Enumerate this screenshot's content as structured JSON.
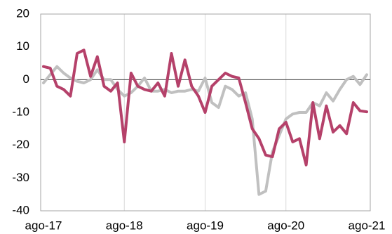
{
  "chart_data": {
    "type": "line",
    "categories": [
      "ago-17",
      null,
      null,
      null,
      null,
      null,
      null,
      null,
      null,
      null,
      null,
      null,
      "ago-18",
      null,
      null,
      null,
      null,
      null,
      null,
      null,
      null,
      null,
      null,
      null,
      "ago-19",
      null,
      null,
      null,
      null,
      null,
      null,
      null,
      null,
      null,
      null,
      null,
      "ago-20",
      null,
      null,
      null,
      null,
      null,
      null,
      null,
      null,
      null,
      null,
      null,
      "ago-21"
    ],
    "series": [
      {
        "color": "#b5416a",
        "values": [
          4,
          3.5,
          -2,
          -3,
          -5,
          8,
          9,
          1,
          7,
          -2,
          -3.5,
          -1,
          -19,
          2,
          -2,
          -3,
          -3.5,
          -1,
          -5,
          8,
          -2,
          6,
          -2,
          -5,
          -10,
          -2,
          0,
          2,
          1,
          0.5,
          -7,
          -15,
          -18,
          -23,
          -23.5,
          -15,
          -13,
          -19,
          -18,
          -26,
          -7,
          -18,
          -8,
          -16,
          -14,
          -16.5,
          -7,
          -9.5,
          -9.8
        ]
      },
      {
        "color": "#c0c0c0",
        "values": [
          -1,
          1.5,
          4,
          2,
          0.5,
          -0.5,
          -1,
          0,
          3,
          0,
          0,
          -3,
          -5,
          -4,
          -2,
          0.5,
          -3.5,
          -3.5,
          -3,
          -4,
          -3.5,
          -3.5,
          -3,
          -3.5,
          0.5,
          -7,
          -8.5,
          -2,
          -3,
          -5,
          -4,
          -12,
          -35,
          -34,
          -22,
          -17,
          -12,
          -10.5,
          -10,
          -10,
          -7,
          -8,
          -4,
          -6.5,
          -3,
          0,
          1,
          -1.5,
          1.5
        ]
      }
    ],
    "ylim": [
      -40,
      20
    ],
    "yticks": [
      -40,
      -30,
      -20,
      -10,
      0,
      10,
      20
    ]
  }
}
